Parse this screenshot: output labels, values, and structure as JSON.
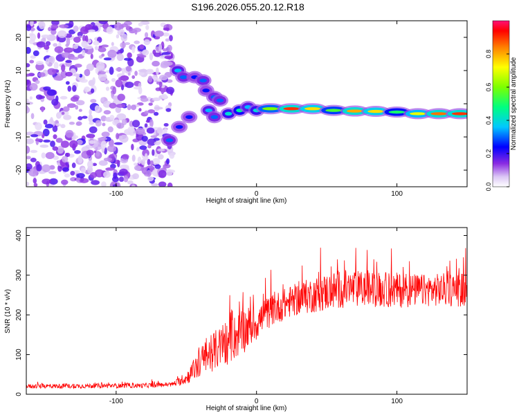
{
  "title": "S196.2026.055.20.12.R18",
  "chart_data": [
    {
      "type": "heatmap",
      "name": "spectrogram",
      "xlabel": "Height of straight line (km)",
      "ylabel": "Frequency (Hz)",
      "xlim": [
        -164,
        150
      ],
      "ylim": [
        -25,
        25
      ],
      "xticks": [
        -100,
        0,
        100
      ],
      "yticks": [
        -20,
        -10,
        0,
        10,
        20
      ],
      "colorbar": {
        "label": "Normalized spectral amplitude",
        "range": [
          0,
          1
        ],
        "ticks": [
          0.0,
          0.2,
          0.4,
          0.6,
          0.8
        ]
      },
      "noise_region_x": [
        -164,
        -60
      ],
      "signal_track": [
        {
          "x": -62,
          "y": -11,
          "amp": 0.3
        },
        {
          "x": -55,
          "y": -7,
          "amp": 0.25
        },
        {
          "x": -48,
          "y": -4,
          "amp": 0.25
        },
        {
          "x": -56,
          "y": 10,
          "amp": 0.35
        },
        {
          "x": -52,
          "y": 8,
          "amp": 0.3
        },
        {
          "x": -44,
          "y": 8,
          "amp": 0.25
        },
        {
          "x": -38,
          "y": 7,
          "amp": 0.3
        },
        {
          "x": -36,
          "y": 4,
          "amp": 0.25
        },
        {
          "x": -30,
          "y": 2,
          "amp": 0.3
        },
        {
          "x": -26,
          "y": 1,
          "amp": 0.3
        },
        {
          "x": -34,
          "y": -2,
          "amp": 0.35
        },
        {
          "x": -30,
          "y": -4,
          "amp": 0.3
        },
        {
          "x": -20,
          "y": -3,
          "amp": 0.4
        },
        {
          "x": -12,
          "y": -2,
          "amp": 0.45
        },
        {
          "x": -6,
          "y": -1,
          "amp": 0.35
        },
        {
          "x": 0,
          "y": -2,
          "amp": 0.4
        },
        {
          "x": 10,
          "y": -1.5,
          "amp": 0.6
        },
        {
          "x": 25,
          "y": -1.5,
          "amp": 0.9
        },
        {
          "x": 40,
          "y": -1.5,
          "amp": 0.75
        },
        {
          "x": 55,
          "y": -2,
          "amp": 0.55
        },
        {
          "x": 70,
          "y": -2.2,
          "amp": 0.8
        },
        {
          "x": 85,
          "y": -2.3,
          "amp": 0.75
        },
        {
          "x": 100,
          "y": -2.5,
          "amp": 0.5
        },
        {
          "x": 115,
          "y": -3,
          "amp": 0.7
        },
        {
          "x": 130,
          "y": -3,
          "amp": 0.85
        },
        {
          "x": 145,
          "y": -3,
          "amp": 0.9
        }
      ]
    },
    {
      "type": "line",
      "name": "snr",
      "xlabel": "Height of straight line (km)",
      "ylabel": "SNR (10 * v/v)",
      "xlim": [
        -164,
        150
      ],
      "ylim": [
        0,
        420
      ],
      "xticks": [
        -100,
        0,
        100
      ],
      "yticks": [
        0,
        100,
        200,
        300,
        400
      ],
      "color": "#ff0000",
      "envelope": [
        {
          "x": -164,
          "base": 20,
          "noise": 12
        },
        {
          "x": -80,
          "base": 22,
          "noise": 12
        },
        {
          "x": -60,
          "base": 25,
          "noise": 12
        },
        {
          "x": -50,
          "base": 40,
          "noise": 30
        },
        {
          "x": -40,
          "base": 80,
          "noise": 80
        },
        {
          "x": -30,
          "base": 110,
          "noise": 100
        },
        {
          "x": -20,
          "base": 130,
          "noise": 110
        },
        {
          "x": -10,
          "base": 160,
          "noise": 120
        },
        {
          "x": 0,
          "base": 180,
          "noise": 90
        },
        {
          "x": 10,
          "base": 210,
          "noise": 80
        },
        {
          "x": 25,
          "base": 235,
          "noise": 80
        },
        {
          "x": 40,
          "base": 250,
          "noise": 90
        },
        {
          "x": 60,
          "base": 265,
          "noise": 100
        },
        {
          "x": 80,
          "base": 265,
          "noise": 90
        },
        {
          "x": 100,
          "base": 262,
          "noise": 90
        },
        {
          "x": 120,
          "base": 262,
          "noise": 80
        },
        {
          "x": 150,
          "base": 265,
          "noise": 90
        }
      ],
      "samples": 1200
    }
  ]
}
